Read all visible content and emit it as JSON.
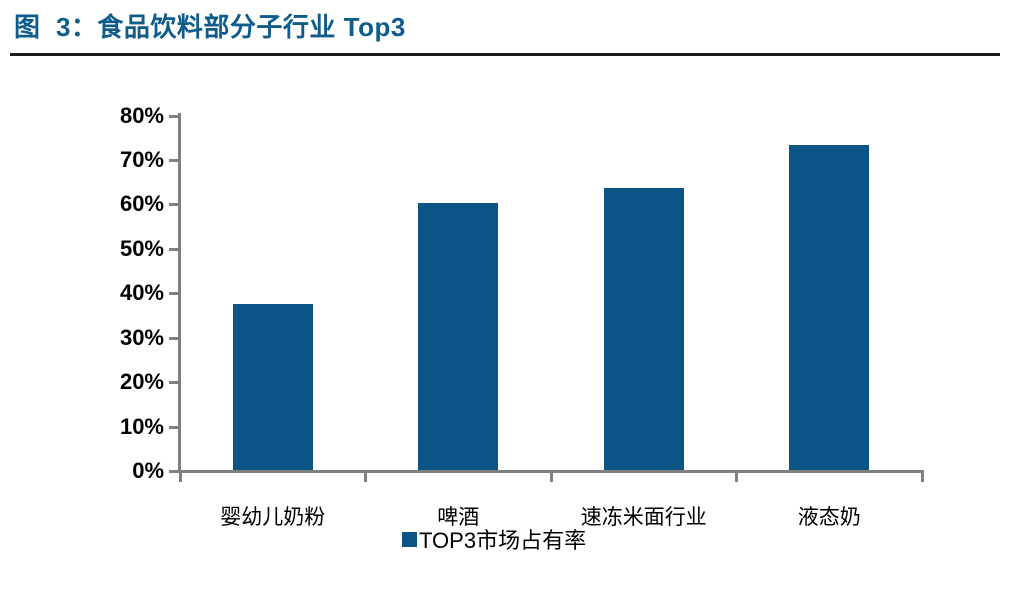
{
  "header": {
    "title": "图  3：食品饮料部分子行业 Top3",
    "title_color": "#0E5C8C",
    "rule_color": "#1B1B1B"
  },
  "chart_data": {
    "type": "bar",
    "title": "图 3：食品饮料部分子行业 Top3",
    "categories": [
      "婴幼儿奶粉",
      "啤酒",
      "速冻米面行业",
      "液态奶"
    ],
    "series": [
      {
        "name": "TOP3市场占有率",
        "values": [
          37.3,
          60.2,
          63.5,
          73.2
        ]
      }
    ],
    "xlabel": "",
    "ylabel": "",
    "ylim": [
      0,
      80
    ],
    "ytick_step": 10,
    "ytick_suffix": "%",
    "grid": false,
    "bar_color": "#0A5586",
    "axis_color": "#808080",
    "legend": {
      "label": "TOP3市场占有率",
      "marker_color": "#0A5586",
      "position": "bottom-center"
    }
  }
}
